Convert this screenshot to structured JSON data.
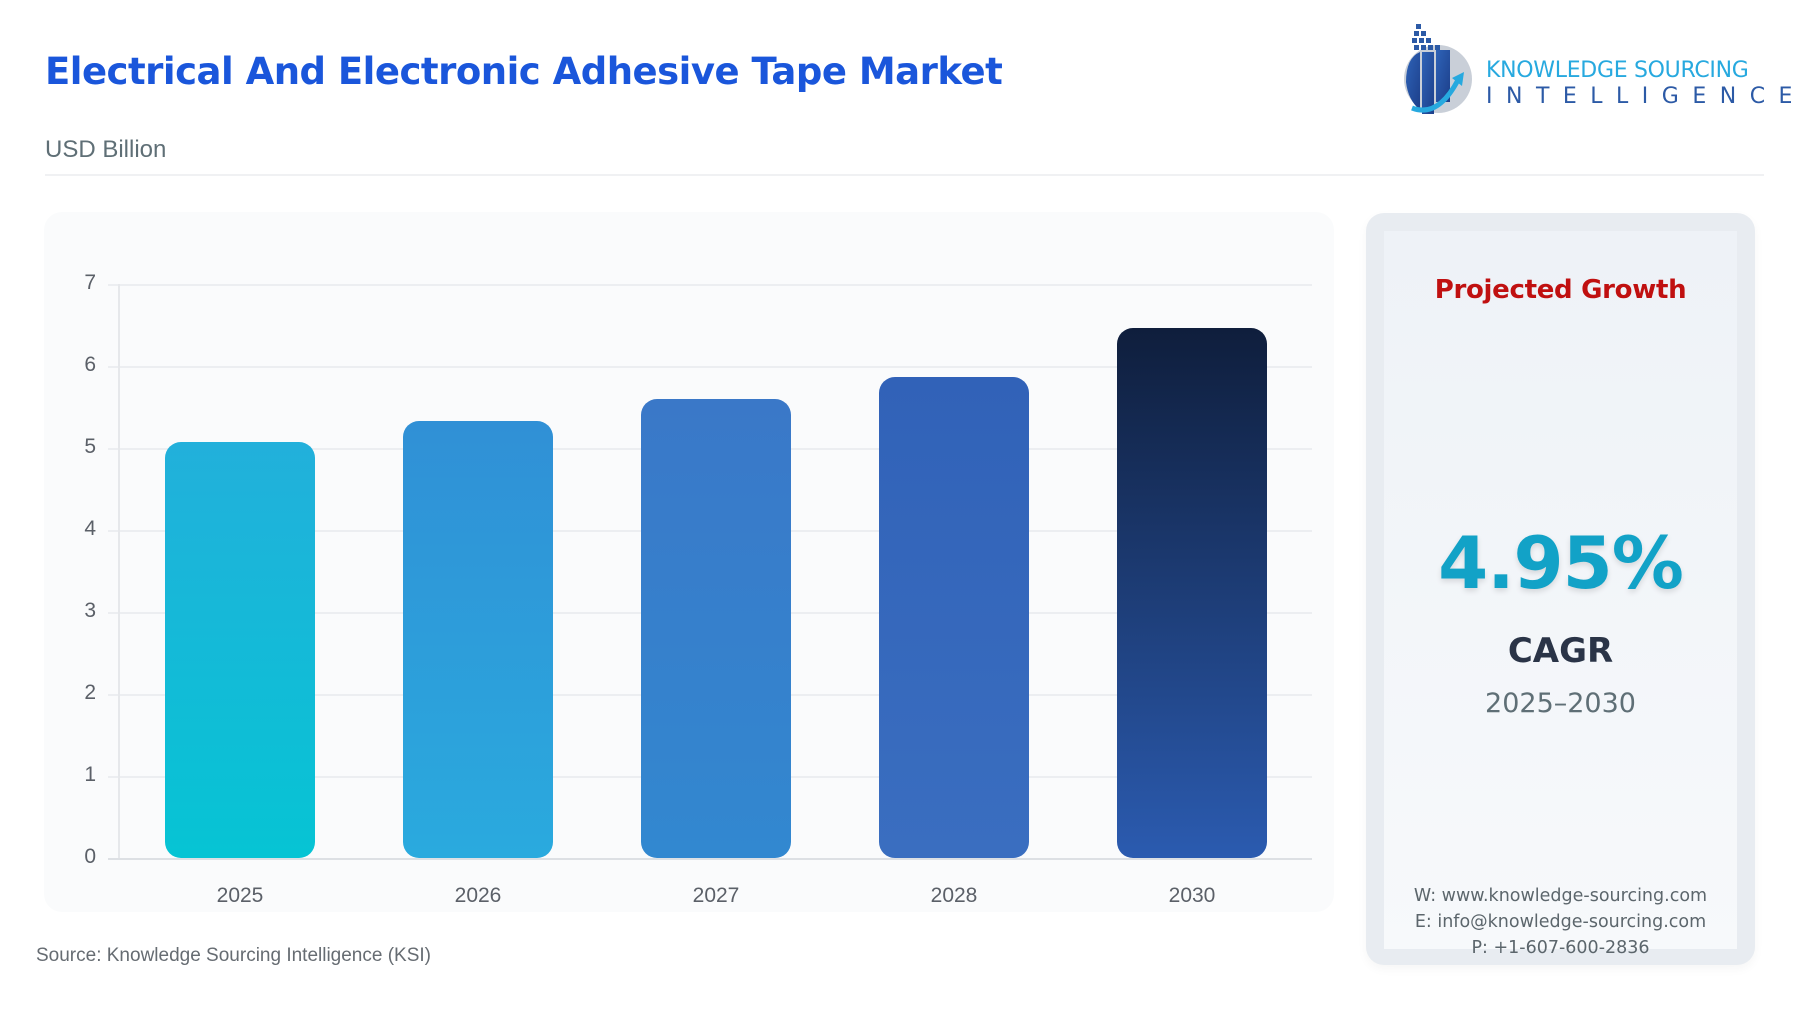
{
  "header": {
    "title": "Electrical And Electronic Adhesive Tape Market",
    "subtitle": "USD Billion"
  },
  "logo": {
    "line1": "KNOWLEDGE SOURCING",
    "line2": "INTELLIGENCE",
    "icon": "ksi-logo-icon"
  },
  "colors": {
    "title": "#1a56db",
    "projected_growth": "#c01010",
    "cagr_value": "#12a2c7",
    "bars": [
      [
        "#22b0db",
        "#06c4d4"
      ],
      [
        "#3090d6",
        "#2aaade"
      ],
      [
        "#3a78c8",
        "#3288d0"
      ],
      [
        "#3162b8",
        "#3a6ec0"
      ],
      [
        "#0f1e3c",
        "#2b5bb0"
      ]
    ]
  },
  "chart_data": {
    "type": "bar",
    "title": "Electrical And Electronic Adhesive Tape Market",
    "subtitle": "USD Billion",
    "categories": [
      "2025",
      "2026",
      "2027",
      "2028",
      "2030"
    ],
    "values": [
      5.07,
      5.33,
      5.6,
      5.87,
      6.46
    ],
    "xlabel": "",
    "ylabel": "USD Billion",
    "ylim": [
      0,
      7
    ],
    "yticks": [
      "0",
      "1",
      "2",
      "3",
      "4",
      "5",
      "6",
      "7"
    ],
    "grid": true,
    "legend": null
  },
  "growth": {
    "heading": "Projected Growth",
    "value": "4.95%",
    "label": "CAGR",
    "period": "2025–2030"
  },
  "contact": {
    "web": "W: www.knowledge-sourcing.com",
    "email": "E: info@knowledge-sourcing.com",
    "phone": "P: +1-607-600-2836"
  },
  "source": "Source: Knowledge Sourcing Intelligence (KSI)"
}
